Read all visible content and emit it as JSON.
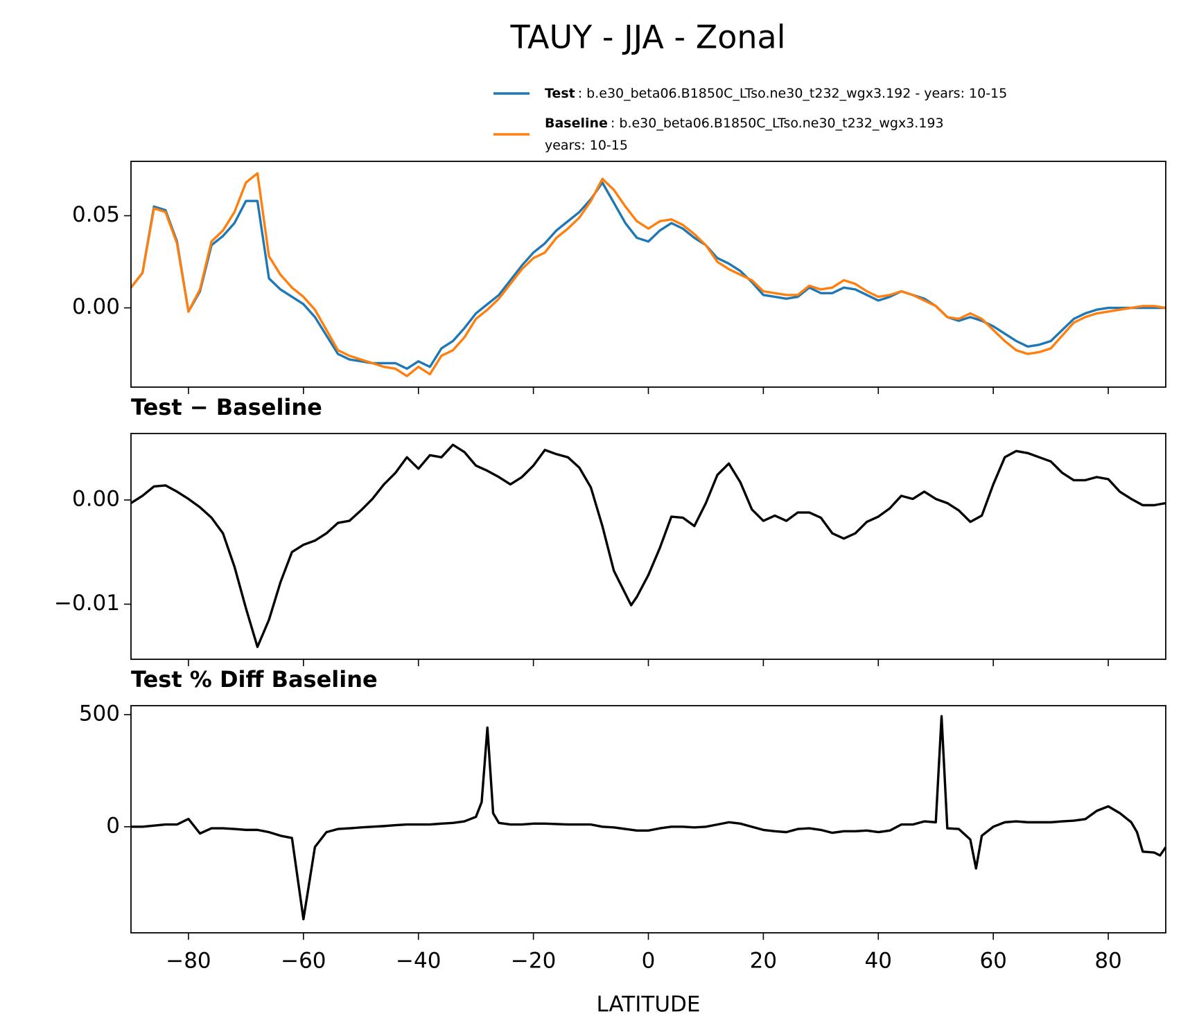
{
  "title": "TAUY - JJA - Zonal",
  "chart_data": [
    {
      "type": "line",
      "x": [
        -90,
        -88,
        -86,
        -84,
        -82,
        -80,
        -78,
        -76,
        -74,
        -72,
        -70,
        -68,
        -66,
        -64,
        -62,
        -60,
        -58,
        -56,
        -54,
        -52,
        -50,
        -48,
        -46,
        -44,
        -42,
        -40,
        -38,
        -36,
        -34,
        -32,
        -30,
        -28,
        -26,
        -24,
        -22,
        -20,
        -18,
        -16,
        -14,
        -12,
        -10,
        -8,
        -6,
        -4,
        -2,
        0,
        2,
        4,
        6,
        8,
        10,
        12,
        14,
        16,
        18,
        20,
        22,
        24,
        26,
        28,
        30,
        32,
        34,
        36,
        38,
        40,
        42,
        44,
        46,
        48,
        50,
        52,
        54,
        56,
        58,
        60,
        62,
        64,
        66,
        68,
        70,
        72,
        74,
        76,
        78,
        80,
        82,
        84,
        86,
        88,
        90
      ],
      "series": [
        {
          "name": "Test",
          "legend_text": [
            ": b.e30_beta06.B1850C_LTso.ne30_t232_wgx3.192 - years: 10-15"
          ],
          "color": "#1f77b4",
          "values": [
            0.011,
            0.019,
            0.055,
            0.053,
            0.036,
            -0.002,
            0.009,
            0.034,
            0.039,
            0.046,
            0.058,
            0.058,
            0.016,
            0.01,
            0.006,
            0.002,
            -0.005,
            -0.015,
            -0.025,
            -0.028,
            -0.029,
            -0.03,
            -0.03,
            -0.03,
            -0.033,
            -0.029,
            -0.032,
            -0.022,
            -0.018,
            -0.011,
            -0.003,
            0.002,
            0.007,
            0.015,
            0.023,
            0.03,
            0.035,
            0.042,
            0.047,
            0.052,
            0.059,
            0.068,
            0.057,
            0.046,
            0.038,
            0.036,
            0.042,
            0.046,
            0.043,
            0.038,
            0.034,
            0.027,
            0.024,
            0.02,
            0.014,
            0.007,
            0.006,
            0.005,
            0.006,
            0.011,
            0.008,
            0.008,
            0.011,
            0.01,
            0.007,
            0.004,
            0.006,
            0.009,
            0.007,
            0.005,
            0.001,
            -0.005,
            -0.007,
            -0.005,
            -0.007,
            -0.01,
            -0.014,
            -0.018,
            -0.021,
            -0.02,
            -0.018,
            -0.012,
            -0.006,
            -0.003,
            -0.001,
            0,
            0,
            0,
            0,
            0,
            0
          ]
        },
        {
          "name": "Baseline",
          "legend_text": [
            ": b.e30_beta06.B1850C_LTso.ne30_t232_wgx3.193",
            "years: 10-15"
          ],
          "color": "#ff7f0e",
          "values": [
            0.011,
            0.019,
            0.054,
            0.052,
            0.035,
            -0.002,
            0.01,
            0.036,
            0.042,
            0.052,
            0.068,
            0.073,
            0.028,
            0.018,
            0.011,
            0.006,
            -0.001,
            -0.012,
            -0.023,
            -0.026,
            -0.028,
            -0.03,
            -0.032,
            -0.033,
            -0.037,
            -0.032,
            -0.036,
            -0.026,
            -0.023,
            -0.016,
            -0.006,
            -0.001,
            0.005,
            0.013,
            0.021,
            0.027,
            0.03,
            0.038,
            0.043,
            0.049,
            0.058,
            0.07,
            0.064,
            0.055,
            0.047,
            0.043,
            0.047,
            0.048,
            0.045,
            0.04,
            0.034,
            0.025,
            0.021,
            0.018,
            0.015,
            0.009,
            0.008,
            0.007,
            0.007,
            0.012,
            0.01,
            0.011,
            0.015,
            0.013,
            0.009,
            0.006,
            0.007,
            0.009,
            0.007,
            0.004,
            0.001,
            -0.005,
            -0.006,
            -0.003,
            -0.006,
            -0.012,
            -0.018,
            -0.023,
            -0.025,
            -0.024,
            -0.022,
            -0.015,
            -0.008,
            -0.005,
            -0.003,
            -0.002,
            -0.001,
            0,
            0.001,
            0.001,
            0
          ]
        }
      ],
      "xlim": [
        -90,
        90
      ],
      "xticks": [
        -80,
        -60,
        -40,
        -20,
        0,
        20,
        40,
        60,
        80
      ],
      "show_xtick_labels": false,
      "ylim": [
        -0.043,
        0.0795
      ],
      "yticks": [
        {
          "value": 0,
          "label": "0.00"
        },
        {
          "value": 0.05,
          "label": "0.05"
        }
      ]
    },
    {
      "type": "line",
      "title": "Test − Baseline",
      "color": "#000000",
      "x": [
        -90,
        -88,
        -86,
        -84,
        -82,
        -80,
        -78,
        -76,
        -74,
        -72,
        -70,
        -68,
        -66,
        -64,
        -62,
        -60,
        -58,
        -56,
        -54,
        -52,
        -50,
        -48,
        -46,
        -44,
        -42,
        -40,
        -38,
        -36,
        -34,
        -32,
        -30,
        -28,
        -26,
        -24,
        -22,
        -20,
        -18,
        -16,
        -14,
        -12,
        -10,
        -8,
        -6,
        -4,
        -3,
        -2,
        0,
        2,
        4,
        6,
        8,
        10,
        12,
        14,
        16,
        18,
        20,
        22,
        24,
        26,
        28,
        30,
        32,
        34,
        36,
        38,
        40,
        42,
        44,
        46,
        48,
        50,
        52,
        54,
        56,
        58,
        60,
        62,
        64,
        66,
        68,
        70,
        72,
        74,
        76,
        78,
        80,
        82,
        84,
        86,
        88,
        90
      ],
      "values": [
        -0.0003,
        0.0004,
        0.0013,
        0.0014,
        0.0008,
        0.0001,
        -0.0007,
        -0.0017,
        -0.0032,
        -0.0064,
        -0.0104,
        -0.0141,
        -0.0115,
        -0.0079,
        -0.005,
        -0.0043,
        -0.0039,
        -0.0032,
        -0.0022,
        -0.002,
        -0.001,
        0.0001,
        0.0015,
        0.0026,
        0.0041,
        0.003,
        0.0043,
        0.0041,
        0.0053,
        0.0046,
        0.0033,
        0.0028,
        0.0022,
        0.0015,
        0.0022,
        0.0033,
        0.0048,
        0.0044,
        0.0041,
        0.0031,
        0.0012,
        -0.0025,
        -0.0068,
        -0.009,
        -0.0101,
        -0.0093,
        -0.0072,
        -0.0046,
        -0.0016,
        -0.0017,
        -0.0025,
        -0.0003,
        0.0024,
        0.0035,
        0.0017,
        -0.0009,
        -0.002,
        -0.0015,
        -0.002,
        -0.0012,
        -0.0012,
        -0.0017,
        -0.0032,
        -0.0037,
        -0.0032,
        -0.0021,
        -0.0016,
        -0.0008,
        0.0004,
        0.0001,
        0.0008,
        0.0001,
        -0.0003,
        -0.001,
        -0.0021,
        -0.0015,
        0.0015,
        0.0041,
        0.0047,
        0.0045,
        0.0041,
        0.0037,
        0.0026,
        0.0019,
        0.0019,
        0.0022,
        0.002,
        0.0008,
        0.0001,
        -0.0005,
        -0.0005,
        -0.0003
      ],
      "xlim": [
        -90,
        90
      ],
      "xticks": [
        -80,
        -60,
        -40,
        -20,
        0,
        20,
        40,
        60,
        80
      ],
      "show_xtick_labels": false,
      "ylim": [
        -0.01529,
        0.00638
      ],
      "yticks": [
        {
          "value": -0.01,
          "label": "−0.01"
        },
        {
          "value": 0,
          "label": "0.00"
        }
      ]
    },
    {
      "type": "line",
      "title": "Test % Diff Baseline",
      "color": "#000000",
      "xlabel": "LATITUDE",
      "x": [
        -90,
        -88,
        -86,
        -84,
        -82,
        -80,
        -78,
        -76,
        -74,
        -72,
        -70,
        -68,
        -66,
        -64,
        -62,
        -60,
        -58,
        -56,
        -54,
        -52,
        -50,
        -48,
        -46,
        -44,
        -42,
        -40,
        -38,
        -36,
        -34,
        -32,
        -30,
        -29,
        -28,
        -27,
        -26,
        -24,
        -22,
        -20,
        -18,
        -16,
        -14,
        -12,
        -10,
        -8,
        -6,
        -4,
        -2,
        0,
        2,
        4,
        6,
        8,
        10,
        12,
        14,
        16,
        18,
        20,
        22,
        24,
        26,
        28,
        30,
        32,
        34,
        36,
        38,
        40,
        42,
        44,
        46,
        48,
        50,
        51,
        52,
        54,
        56,
        57,
        58,
        60,
        62,
        64,
        66,
        68,
        70,
        72,
        74,
        76,
        78,
        80,
        82,
        84,
        85,
        86,
        88,
        89,
        90
      ],
      "values": [
        0,
        0,
        5,
        10,
        10,
        35,
        -30,
        -7,
        -7,
        -10,
        -14,
        -14,
        -24,
        -40,
        -50,
        -412,
        -90,
        -24,
        -10,
        -7,
        -3,
        0,
        3,
        7,
        10,
        10,
        10,
        14,
        17,
        24,
        44,
        110,
        442,
        60,
        17,
        10,
        10,
        14,
        14,
        12,
        10,
        10,
        10,
        0,
        -3,
        -10,
        -17,
        -17,
        -7,
        0,
        0,
        -3,
        0,
        10,
        20,
        14,
        0,
        -14,
        -20,
        -24,
        -10,
        -7,
        -14,
        -27,
        -20,
        -20,
        -17,
        -24,
        -17,
        10,
        10,
        24,
        20,
        493,
        -7,
        -10,
        -57,
        -186,
        -40,
        0,
        20,
        24,
        20,
        20,
        20,
        24,
        27,
        34,
        71,
        91,
        61,
        20,
        -24,
        -111,
        -115,
        -128,
        -91
      ],
      "xlim": [
        -90,
        90
      ],
      "show_xtick_labels": true,
      "xticks": [
        {
          "value": -80,
          "label": "−80"
        },
        {
          "value": -60,
          "label": "−60"
        },
        {
          "value": -40,
          "label": "−40"
        },
        {
          "value": -20,
          "label": "−20"
        },
        0,
        20,
        40,
        60,
        80
      ],
      "ylim": [
        -473,
        540
      ],
      "yticks": [
        0,
        500
      ]
    }
  ]
}
